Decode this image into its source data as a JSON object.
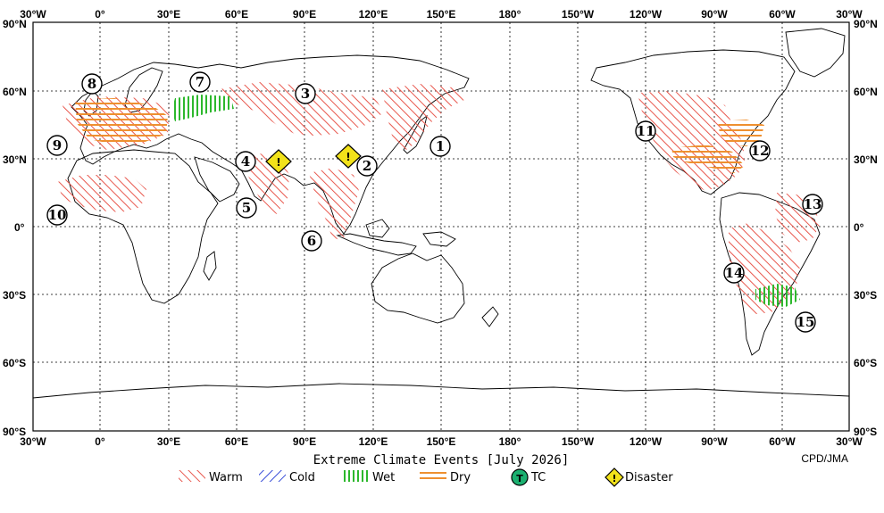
{
  "title": "Extreme Climate Events [July 2026]",
  "credit": "CPD/JMA",
  "lon_ticks": [
    "30°W",
    "0°",
    "30°E",
    "60°E",
    "90°E",
    "120°E",
    "150°E",
    "180°",
    "150°W",
    "120°W",
    "90°W",
    "60°W",
    "30°W"
  ],
  "lat_ticks": [
    "90°N",
    "60°N",
    "30°N",
    "0°",
    "30°S",
    "60°S",
    "90°S"
  ],
  "legend": [
    {
      "label": "Warm",
      "kind": "warm"
    },
    {
      "label": "Cold",
      "kind": "cold"
    },
    {
      "label": "Wet",
      "kind": "wet"
    },
    {
      "label": "Dry",
      "kind": "dry"
    },
    {
      "label": "TC",
      "kind": "tc",
      "symbol": "T"
    },
    {
      "label": "Disaster",
      "kind": "disaster",
      "symbol": "!"
    }
  ],
  "event_labels": [
    "1",
    "2",
    "3",
    "4",
    "5",
    "6",
    "7",
    "8",
    "9",
    "10",
    "11",
    "12",
    "13",
    "14",
    "15"
  ],
  "colors": {
    "warm": "#e8584e",
    "cold": "#3a4fd8",
    "wet": "#2db82d",
    "dry": "#ee9030",
    "tc": "#1cb070",
    "disaster": "#f2e21a"
  }
}
